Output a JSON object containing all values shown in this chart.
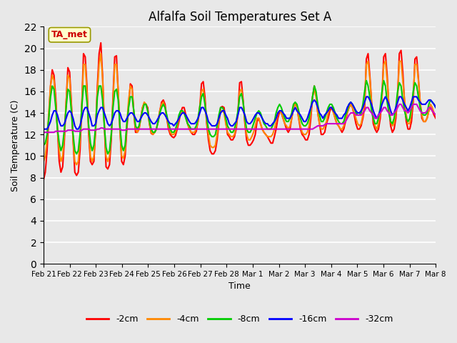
{
  "title": "Alfalfa Soil Temperatures Set A",
  "xlabel": "Time",
  "ylabel": "Soil Temperature (C)",
  "ylim": [
    0,
    22
  ],
  "yticks": [
    0,
    2,
    4,
    6,
    8,
    10,
    12,
    14,
    16,
    18,
    20,
    22
  ],
  "background_color": "#e8e8e8",
  "plot_bg_color": "#e8e8e8",
  "annotation_text": "TA_met",
  "annotation_color": "#cc0000",
  "annotation_bg": "#ffffcc",
  "colors": [
    "#ff0000",
    "#ff8800",
    "#00cc00",
    "#0000ff",
    "#cc00cc"
  ],
  "labels": [
    "-2cm",
    "-4cm",
    "-8cm",
    "-16cm",
    "-32cm"
  ],
  "x_labels": [
    "Feb 21",
    "Feb 22",
    "Feb 23",
    "Feb 24",
    "Feb 25",
    "Feb 26",
    "Feb 27",
    "Feb 28",
    "Mar 1",
    "Mar 2",
    "Mar 3",
    "Mar 4",
    "Mar 5",
    "Mar 6",
    "Mar 7",
    "Mar 8"
  ],
  "data_2cm": [
    7.8,
    8.5,
    10.5,
    13.5,
    16.5,
    18.0,
    17.5,
    15.5,
    12.5,
    9.5,
    8.5,
    9.0,
    11.5,
    15.0,
    18.2,
    17.8,
    15.0,
    11.5,
    8.5,
    8.2,
    8.5,
    10.5,
    14.5,
    19.5,
    19.2,
    16.5,
    12.0,
    9.5,
    9.2,
    9.5,
    12.5,
    16.5,
    19.5,
    20.5,
    17.5,
    13.0,
    9.0,
    8.8,
    9.2,
    11.5,
    15.5,
    19.2,
    19.3,
    16.0,
    12.5,
    9.5,
    9.2,
    10.0,
    12.5,
    14.7,
    16.7,
    16.5,
    14.0,
    12.2,
    12.2,
    12.5,
    13.5,
    14.5,
    14.9,
    14.8,
    14.5,
    13.0,
    12.1,
    12.0,
    12.2,
    12.5,
    13.2,
    14.2,
    15.0,
    15.2,
    14.8,
    13.5,
    12.5,
    12.0,
    11.8,
    11.7,
    11.9,
    12.5,
    13.2,
    14.0,
    14.5,
    14.5,
    13.8,
    13.0,
    12.5,
    12.2,
    12.0,
    12.0,
    12.3,
    13.2,
    14.5,
    16.7,
    16.9,
    15.5,
    13.0,
    11.5,
    10.5,
    10.2,
    10.2,
    10.5,
    11.5,
    13.0,
    14.5,
    14.6,
    14.5,
    13.2,
    12.0,
    11.8,
    11.5,
    11.5,
    11.8,
    12.5,
    14.0,
    16.8,
    16.9,
    15.2,
    13.0,
    11.5,
    11.0,
    11.0,
    11.2,
    11.5,
    12.0,
    13.2,
    13.5,
    13.0,
    12.5,
    12.2,
    12.0,
    11.8,
    11.5,
    11.2,
    11.2,
    11.8,
    12.5,
    13.5,
    14.1,
    14.0,
    13.5,
    13.0,
    12.5,
    12.2,
    12.5,
    13.5,
    14.5,
    14.9,
    14.6,
    13.5,
    12.5,
    12.0,
    11.8,
    11.5,
    11.5,
    12.0,
    13.5,
    15.5,
    16.5,
    15.8,
    14.0,
    13.0,
    12.0,
    12.0,
    12.2,
    13.0,
    13.5,
    14.2,
    14.5,
    14.2,
    13.5,
    13.0,
    12.8,
    12.5,
    12.2,
    12.5,
    13.2,
    14.0,
    14.5,
    14.8,
    14.5,
    13.8,
    13.0,
    12.5,
    12.5,
    12.8,
    13.5,
    14.5,
    19.0,
    19.5,
    17.5,
    15.0,
    13.0,
    12.5,
    12.2,
    12.5,
    13.5,
    15.5,
    19.2,
    19.5,
    17.5,
    14.5,
    12.8,
    12.2,
    12.5,
    13.5,
    15.5,
    19.5,
    19.8,
    17.8,
    15.0,
    13.2,
    12.5,
    12.5,
    13.2,
    15.0,
    19.0,
    19.2,
    17.2,
    15.0,
    13.5,
    13.2,
    13.2,
    13.5,
    14.2,
    14.5,
    14.2,
    13.8,
    13.5
  ],
  "data_4cm": [
    9.5,
    10.0,
    11.5,
    14.0,
    16.5,
    17.5,
    17.0,
    15.0,
    12.5,
    10.5,
    9.5,
    10.0,
    12.0,
    15.0,
    17.5,
    17.2,
    14.8,
    11.5,
    9.5,
    9.2,
    9.5,
    11.5,
    14.5,
    18.5,
    18.5,
    16.0,
    12.5,
    10.0,
    9.5,
    10.0,
    12.5,
    16.0,
    18.5,
    19.5,
    17.2,
    13.0,
    10.0,
    9.5,
    10.0,
    12.0,
    15.0,
    18.5,
    18.5,
    16.0,
    12.5,
    10.0,
    9.8,
    10.5,
    13.0,
    15.2,
    16.5,
    16.2,
    14.0,
    12.5,
    12.2,
    12.5,
    13.5,
    14.5,
    15.0,
    14.8,
    14.2,
    13.0,
    12.2,
    12.0,
    12.2,
    12.5,
    13.2,
    14.2,
    14.8,
    15.0,
    14.5,
    13.5,
    12.8,
    12.2,
    12.0,
    12.0,
    12.2,
    12.8,
    13.5,
    14.0,
    14.2,
    14.0,
    13.5,
    13.0,
    12.5,
    12.2,
    12.2,
    12.2,
    12.5,
    13.2,
    14.5,
    16.0,
    16.2,
    15.0,
    13.2,
    12.0,
    11.0,
    10.8,
    10.8,
    11.0,
    12.0,
    13.2,
    14.2,
    14.2,
    14.0,
    13.0,
    12.2,
    12.0,
    11.8,
    11.8,
    12.0,
    12.8,
    14.0,
    16.0,
    16.2,
    15.0,
    13.2,
    12.0,
    11.5,
    11.5,
    11.8,
    12.2,
    12.8,
    13.5,
    13.5,
    13.0,
    12.5,
    12.2,
    12.0,
    11.8,
    11.8,
    11.8,
    12.0,
    12.5,
    13.2,
    14.0,
    14.2,
    14.0,
    13.5,
    13.0,
    12.8,
    12.5,
    12.8,
    13.5,
    14.5,
    14.8,
    14.5,
    13.5,
    12.8,
    12.2,
    12.0,
    12.0,
    12.2,
    12.8,
    14.0,
    15.5,
    16.2,
    15.5,
    14.0,
    13.0,
    12.5,
    12.5,
    12.8,
    13.2,
    14.0,
    14.5,
    14.5,
    14.0,
    13.5,
    13.0,
    12.8,
    12.5,
    12.5,
    12.8,
    13.5,
    14.0,
    14.5,
    14.8,
    14.5,
    14.0,
    13.5,
    13.0,
    12.8,
    13.0,
    13.8,
    15.0,
    18.5,
    18.8,
    17.2,
    15.0,
    13.5,
    12.8,
    12.5,
    13.0,
    14.0,
    15.5,
    18.5,
    18.8,
    17.0,
    14.8,
    13.2,
    12.8,
    13.0,
    14.0,
    15.5,
    18.8,
    18.8,
    17.0,
    15.2,
    13.8,
    13.0,
    13.0,
    14.0,
    15.5,
    18.5,
    18.5,
    17.0,
    15.0,
    13.8,
    13.2,
    13.2,
    13.5,
    14.2,
    14.8,
    14.5,
    14.0,
    13.8,
    13.5
  ],
  "data_8cm": [
    11.0,
    11.2,
    12.0,
    13.5,
    15.5,
    16.5,
    16.2,
    14.5,
    12.5,
    11.2,
    10.5,
    11.0,
    12.5,
    14.5,
    16.2,
    16.0,
    14.2,
    12.0,
    10.5,
    10.2,
    10.5,
    12.0,
    14.5,
    16.5,
    16.5,
    15.0,
    12.8,
    11.2,
    10.5,
    11.0,
    12.8,
    15.5,
    16.5,
    16.5,
    15.2,
    12.8,
    10.8,
    10.2,
    10.5,
    12.0,
    14.5,
    16.0,
    16.2,
    15.2,
    12.8,
    11.0,
    10.5,
    11.0,
    13.0,
    14.5,
    15.5,
    15.5,
    14.2,
    12.8,
    12.5,
    12.8,
    13.5,
    14.2,
    14.8,
    14.8,
    14.2,
    13.2,
    12.5,
    12.2,
    12.2,
    12.5,
    13.2,
    14.0,
    14.5,
    14.8,
    14.5,
    13.8,
    13.0,
    12.5,
    12.2,
    12.2,
    12.5,
    13.0,
    13.8,
    14.2,
    14.2,
    14.0,
    13.5,
    13.0,
    12.8,
    12.5,
    12.5,
    12.5,
    12.8,
    13.5,
    14.5,
    15.5,
    15.8,
    14.8,
    13.5,
    12.5,
    12.0,
    11.8,
    11.8,
    12.0,
    12.8,
    13.8,
    14.5,
    14.5,
    14.2,
    13.5,
    12.8,
    12.5,
    12.2,
    12.2,
    12.5,
    13.2,
    14.2,
    15.5,
    15.8,
    15.0,
    13.5,
    12.5,
    12.2,
    12.2,
    12.5,
    13.0,
    13.5,
    14.0,
    14.2,
    14.0,
    13.5,
    13.0,
    12.8,
    12.5,
    12.5,
    12.5,
    12.8,
    13.2,
    14.0,
    14.5,
    14.8,
    14.5,
    14.0,
    13.5,
    13.2,
    13.2,
    13.5,
    14.0,
    14.8,
    15.0,
    14.8,
    14.2,
    13.5,
    13.0,
    12.8,
    12.8,
    13.0,
    13.5,
    14.5,
    15.5,
    16.5,
    16.0,
    14.8,
    13.8,
    13.2,
    13.2,
    13.5,
    14.0,
    14.5,
    14.8,
    14.8,
    14.5,
    14.0,
    13.5,
    13.2,
    13.0,
    13.0,
    13.2,
    13.8,
    14.2,
    14.8,
    15.0,
    14.8,
    14.5,
    14.0,
    13.8,
    13.8,
    14.0,
    14.8,
    16.0,
    17.0,
    16.5,
    15.5,
    14.2,
    13.5,
    13.0,
    13.0,
    13.5,
    14.5,
    16.0,
    17.0,
    16.5,
    15.0,
    14.0,
    13.2,
    13.0,
    13.5,
    14.5,
    16.0,
    16.8,
    16.5,
    15.2,
    14.2,
    13.5,
    13.2,
    13.5,
    14.5,
    16.0,
    16.8,
    16.5,
    15.5,
    14.5,
    14.0,
    13.8,
    13.8,
    14.0,
    14.8,
    15.2,
    15.0,
    14.8,
    14.5,
    14.2
  ],
  "data_16cm": [
    12.5,
    12.5,
    12.5,
    12.8,
    13.2,
    13.8,
    14.2,
    14.2,
    13.8,
    13.2,
    12.8,
    12.8,
    13.0,
    13.5,
    14.0,
    14.2,
    14.0,
    13.5,
    12.8,
    12.5,
    12.5,
    12.8,
    13.5,
    14.2,
    14.5,
    14.5,
    14.0,
    13.5,
    12.8,
    12.8,
    13.0,
    13.8,
    14.2,
    14.5,
    14.5,
    14.0,
    13.5,
    13.0,
    12.8,
    13.0,
    13.5,
    14.0,
    14.2,
    14.2,
    14.0,
    13.5,
    13.2,
    13.2,
    13.5,
    13.8,
    14.0,
    14.0,
    13.8,
    13.5,
    13.2,
    13.2,
    13.5,
    13.8,
    14.0,
    14.0,
    13.8,
    13.5,
    13.2,
    13.0,
    13.0,
    13.2,
    13.5,
    13.8,
    14.0,
    14.0,
    13.8,
    13.5,
    13.2,
    13.0,
    13.0,
    12.8,
    13.0,
    13.2,
    13.5,
    13.8,
    14.0,
    14.0,
    13.8,
    13.5,
    13.2,
    13.0,
    13.0,
    13.0,
    13.2,
    13.5,
    14.0,
    14.5,
    14.5,
    14.2,
    13.8,
    13.2,
    13.0,
    12.8,
    12.8,
    12.8,
    13.0,
    13.5,
    14.0,
    14.2,
    14.2,
    13.8,
    13.5,
    13.0,
    12.8,
    12.8,
    13.0,
    13.2,
    13.8,
    14.5,
    14.5,
    14.2,
    13.8,
    13.2,
    13.0,
    13.0,
    13.2,
    13.5,
    13.8,
    14.0,
    14.0,
    13.8,
    13.5,
    13.2,
    13.0,
    13.0,
    12.8,
    12.8,
    13.0,
    13.2,
    13.5,
    14.0,
    14.2,
    14.2,
    14.0,
    13.8,
    13.5,
    13.5,
    13.5,
    13.8,
    14.2,
    14.5,
    14.2,
    14.0,
    13.8,
    13.5,
    13.2,
    13.2,
    13.5,
    14.0,
    14.5,
    15.0,
    15.2,
    15.0,
    14.5,
    14.0,
    13.8,
    13.5,
    13.8,
    14.0,
    14.2,
    14.5,
    14.5,
    14.2,
    14.0,
    13.8,
    13.5,
    13.5,
    13.5,
    13.8,
    14.0,
    14.5,
    14.8,
    15.0,
    14.8,
    14.5,
    14.2,
    14.0,
    14.0,
    14.2,
    14.5,
    15.0,
    15.5,
    15.5,
    15.2,
    14.8,
    14.2,
    13.8,
    13.5,
    13.8,
    14.2,
    14.8,
    15.2,
    15.5,
    15.2,
    14.8,
    14.2,
    13.8,
    14.0,
    14.5,
    15.0,
    15.5,
    15.5,
    15.2,
    14.8,
    14.5,
    14.2,
    14.5,
    15.0,
    15.5,
    15.5,
    15.5,
    15.2,
    15.0,
    14.8,
    14.8,
    14.8,
    15.0,
    15.2,
    15.2,
    15.0,
    14.8,
    14.5,
    14.2
  ],
  "data_32cm": [
    12.2,
    12.2,
    12.2,
    12.2,
    12.2,
    12.2,
    12.2,
    12.3,
    12.3,
    12.3,
    12.3,
    12.3,
    12.3,
    12.3,
    12.4,
    12.4,
    12.4,
    12.4,
    12.3,
    12.3,
    12.3,
    12.3,
    12.4,
    12.5,
    12.5,
    12.5,
    12.5,
    12.4,
    12.4,
    12.4,
    12.4,
    12.5,
    12.5,
    12.6,
    12.6,
    12.5,
    12.5,
    12.5,
    12.5,
    12.5,
    12.5,
    12.5,
    12.5,
    12.5,
    12.5,
    12.4,
    12.4,
    12.4,
    12.5,
    12.5,
    12.5,
    12.5,
    12.5,
    12.5,
    12.5,
    12.5,
    12.5,
    12.5,
    12.5,
    12.5,
    12.5,
    12.5,
    12.5,
    12.5,
    12.5,
    12.5,
    12.5,
    12.5,
    12.5,
    12.5,
    12.5,
    12.5,
    12.5,
    12.5,
    12.5,
    12.5,
    12.5,
    12.5,
    12.5,
    12.5,
    12.5,
    12.5,
    12.5,
    12.5,
    12.5,
    12.5,
    12.5,
    12.5,
    12.5,
    12.5,
    12.5,
    12.5,
    12.5,
    12.5,
    12.5,
    12.5,
    12.5,
    12.5,
    12.5,
    12.5,
    12.5,
    12.5,
    12.5,
    12.5,
    12.5,
    12.5,
    12.5,
    12.5,
    12.5,
    12.5,
    12.5,
    12.5,
    12.5,
    12.5,
    12.5,
    12.5,
    12.5,
    12.5,
    12.5,
    12.5,
    12.5,
    12.5,
    12.5,
    12.5,
    12.5,
    12.5,
    12.5,
    12.5,
    12.5,
    12.5,
    12.5,
    12.5,
    12.5,
    12.5,
    12.5,
    12.5,
    12.5,
    12.5,
    12.5,
    12.5,
    12.5,
    12.5,
    12.5,
    12.5,
    12.5,
    12.5,
    12.5,
    12.5,
    12.5,
    12.5,
    12.5,
    12.5,
    12.5,
    12.5,
    12.5,
    12.5,
    12.6,
    12.7,
    12.8,
    12.8,
    12.8,
    12.8,
    12.9,
    13.0,
    13.0,
    13.0,
    13.0,
    13.0,
    13.0,
    13.0,
    13.0,
    13.0,
    13.0,
    13.0,
    13.2,
    13.5,
    13.8,
    14.0,
    14.0,
    14.0,
    13.8,
    13.8,
    13.8,
    13.8,
    14.0,
    14.2,
    14.5,
    14.5,
    14.2,
    14.0,
    13.8,
    13.5,
    13.5,
    13.8,
    14.0,
    14.2,
    14.5,
    14.5,
    14.2,
    14.0,
    13.8,
    13.8,
    14.0,
    14.2,
    14.5,
    14.8,
    14.8,
    14.5,
    14.2,
    14.2,
    14.0,
    14.2,
    14.5,
    14.8,
    14.8,
    14.8,
    14.5,
    14.2,
    14.0,
    14.0,
    14.0,
    14.2,
    14.5,
    14.5,
    14.2,
    14.0,
    13.8,
    13.5
  ]
}
